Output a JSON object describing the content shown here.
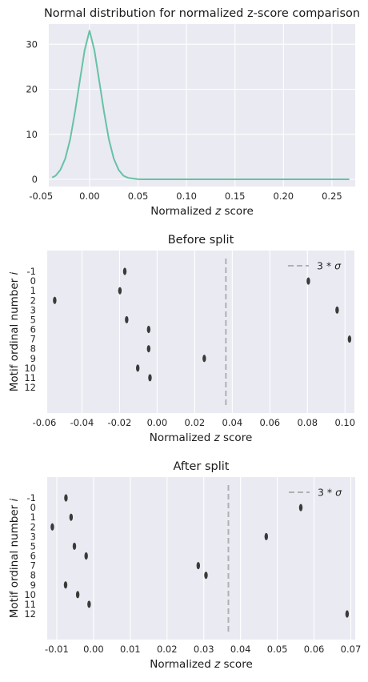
{
  "figure": {
    "background": "#ffffff",
    "panel_background": "#eaeaf2",
    "grid_color": "#ffffff"
  },
  "chart_data": [
    {
      "type": "line",
      "title": "Normal distribution for normalized z-score comparison",
      "xlabel_prefix": "Normalized ",
      "xlabel_var": "z",
      "xlabel_suffix": " score",
      "ylabel": "",
      "xlim": [
        -0.042,
        0.274
      ],
      "ylim": [
        -1.6,
        34.5
      ],
      "xticks": [
        -0.05,
        0.0,
        0.05,
        0.1,
        0.15,
        0.2,
        0.25
      ],
      "xtick_labels": [
        "-0.05",
        "0.00",
        "0.05",
        "0.10",
        "0.15",
        "0.20",
        "0.25"
      ],
      "yticks": [
        0,
        10,
        20,
        30
      ],
      "ytick_labels": [
        "0",
        "10",
        "20",
        "30"
      ],
      "grid": true,
      "line_color": "#66c2a5",
      "series": [
        {
          "x": [
            -0.0385,
            -0.035,
            -0.03,
            -0.025,
            -0.02,
            -0.015,
            -0.01,
            -0.005,
            0.0,
            0.005,
            0.01,
            0.015,
            0.02,
            0.025,
            0.03,
            0.035,
            0.04,
            0.05,
            0.06,
            0.1,
            0.15,
            0.2,
            0.25,
            0.268
          ],
          "y": [
            0.4,
            0.8,
            2.1,
            4.6,
            8.9,
            14.9,
            21.9,
            28.7,
            33.0,
            28.7,
            21.9,
            14.9,
            8.9,
            4.6,
            2.1,
            0.8,
            0.3,
            0.02,
            0.0,
            0.0,
            0.0,
            0.0,
            0.0,
            0.0
          ]
        }
      ]
    },
    {
      "type": "scatter",
      "title": "Before split",
      "xlabel_prefix": "Normalized ",
      "xlabel_var": "z",
      "xlabel_suffix": " score",
      "ylabel_prefix": "Motif ordinal number ",
      "ylabel_var": "i",
      "xlim": [
        -0.0585,
        0.105
      ],
      "xticks": [
        -0.06,
        -0.04,
        -0.02,
        0.0,
        0.02,
        0.04,
        0.06,
        0.08,
        0.1
      ],
      "xtick_labels": [
        "-0.06",
        "-0.04",
        "-0.02",
        "0.00",
        "0.02",
        "0.04",
        "0.06",
        "0.08",
        "0.10"
      ],
      "categories": [
        "-1",
        "0",
        "1",
        "2",
        "3",
        "5",
        "6",
        "7",
        "8",
        "9",
        "10",
        "11",
        "12"
      ],
      "grid": true,
      "marker_color": "#3a3a3a",
      "points": [
        {
          "category": "-1",
          "x": -0.0172
        },
        {
          "category": "0",
          "x": 0.0805
        },
        {
          "category": "1",
          "x": -0.0198
        },
        {
          "category": "2",
          "x": -0.0545
        },
        {
          "category": "3",
          "x": 0.0958
        },
        {
          "category": "5",
          "x": -0.0162
        },
        {
          "category": "6",
          "x": -0.0045
        },
        {
          "category": "7",
          "x": 0.1024
        },
        {
          "category": "8",
          "x": -0.0045
        },
        {
          "category": "9",
          "x": 0.0251
        },
        {
          "category": "10",
          "x": -0.0103
        },
        {
          "category": "11",
          "x": -0.0038
        }
      ],
      "threshold": {
        "x": 0.0366,
        "color": "#b0b0b0",
        "label_base": "3",
        "label_op": " * ",
        "label_var": "σ"
      },
      "legend_position": "top-right"
    },
    {
      "type": "scatter",
      "title": "After split",
      "xlabel_prefix": "Normalized ",
      "xlabel_var": "z",
      "xlabel_suffix": " score",
      "ylabel_prefix": "Motif ordinal number ",
      "ylabel_var": "i",
      "xlim": [
        -0.0126,
        0.0712
      ],
      "xticks": [
        -0.01,
        0.0,
        0.01,
        0.02,
        0.03,
        0.04,
        0.05,
        0.06,
        0.07
      ],
      "xtick_labels": [
        "-0.01",
        "0.00",
        "0.01",
        "0.02",
        "0.03",
        "0.04",
        "0.05",
        "0.06",
        "0.07"
      ],
      "categories": [
        "-1",
        "0",
        "1",
        "2",
        "3",
        "5",
        "6",
        "7",
        "8",
        "9",
        "10",
        "11",
        "12"
      ],
      "grid": true,
      "marker_color": "#3a3a3a",
      "points": [
        {
          "category": "-1",
          "x": -0.0075
        },
        {
          "category": "0",
          "x": 0.0564
        },
        {
          "category": "1",
          "x": -0.0061
        },
        {
          "category": "2",
          "x": -0.0112
        },
        {
          "category": "3",
          "x": 0.047
        },
        {
          "category": "5",
          "x": -0.0052
        },
        {
          "category": "6",
          "x": -0.002
        },
        {
          "category": "7",
          "x": 0.0285
        },
        {
          "category": "8",
          "x": 0.0306
        },
        {
          "category": "9",
          "x": -0.0076
        },
        {
          "category": "10",
          "x": -0.0043
        },
        {
          "category": "11",
          "x": -0.0012
        },
        {
          "category": "12",
          "x": 0.069
        }
      ],
      "threshold": {
        "x": 0.0367,
        "color": "#b0b0b0",
        "label_base": "3",
        "label_op": " * ",
        "label_var": "σ"
      },
      "legend_position": "top-right"
    }
  ]
}
